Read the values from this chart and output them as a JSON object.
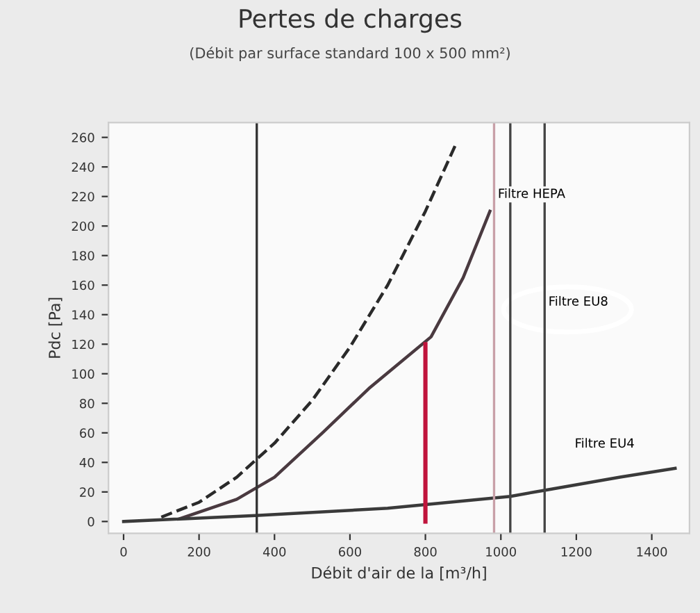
{
  "chart_data": {
    "type": "line",
    "title": "Pertes de charges",
    "subtitle": "(Débit par surface standard 100 x 500 mm²)",
    "xlabel": "Débit d'air de la [m³/h]",
    "ylabel": "Pdc [Pa]",
    "series": [
      {
        "color": "#2a2a2a",
        "line_style": "dashed",
        "x": [
          100,
          200,
          300,
          400,
          500,
          600,
          700,
          800,
          880
        ],
        "values": [
          3,
          13,
          30,
          53,
          82,
          118,
          160,
          210,
          255
        ]
      },
      {
        "color": "#4a3a40",
        "line_style": "solid",
        "x": [
          150,
          300,
          400,
          527,
          650,
          815,
          900,
          971
        ],
        "values": [
          2,
          15,
          30,
          60,
          90,
          125,
          165,
          210
        ]
      },
      {
        "color": "#3a3a3a",
        "line_style": "solid",
        "x": [
          0,
          350,
          700,
          1025,
          1113,
          1316,
          1462
        ],
        "values": [
          0,
          4,
          9,
          17,
          21,
          30,
          36
        ]
      },
      {
        "color": "#c0143c",
        "line_style": "solid",
        "x": [
          800,
          800
        ],
        "values": [
          0,
          120
        ]
      }
    ],
    "ref_lines": [
      {
        "axis": "x",
        "value": 353,
        "color": "#333333"
      },
      {
        "axis": "x",
        "value": 982,
        "color": "#c8a0a8",
        "label": "Filtre HEPA"
      },
      {
        "axis": "x",
        "value": 1025,
        "color": "#444444"
      },
      {
        "axis": "x",
        "value": 1116,
        "color": "#444444",
        "label": "Filtre EU8"
      }
    ],
    "annotations": [
      {
        "text": "Filtre EU4",
        "x": 1316,
        "y": 30
      }
    ],
    "xlim": [
      -40,
      1500
    ],
    "xticks": [
      0,
      200,
      400,
      600,
      800,
      1000,
      1200,
      1400
    ],
    "ylim": [
      -8,
      270
    ],
    "yticks": [
      0,
      20,
      40,
      60,
      80,
      100,
      120,
      140,
      160,
      180,
      200,
      220,
      240,
      260
    ],
    "marker": "none",
    "grid": false,
    "legend": false
  }
}
